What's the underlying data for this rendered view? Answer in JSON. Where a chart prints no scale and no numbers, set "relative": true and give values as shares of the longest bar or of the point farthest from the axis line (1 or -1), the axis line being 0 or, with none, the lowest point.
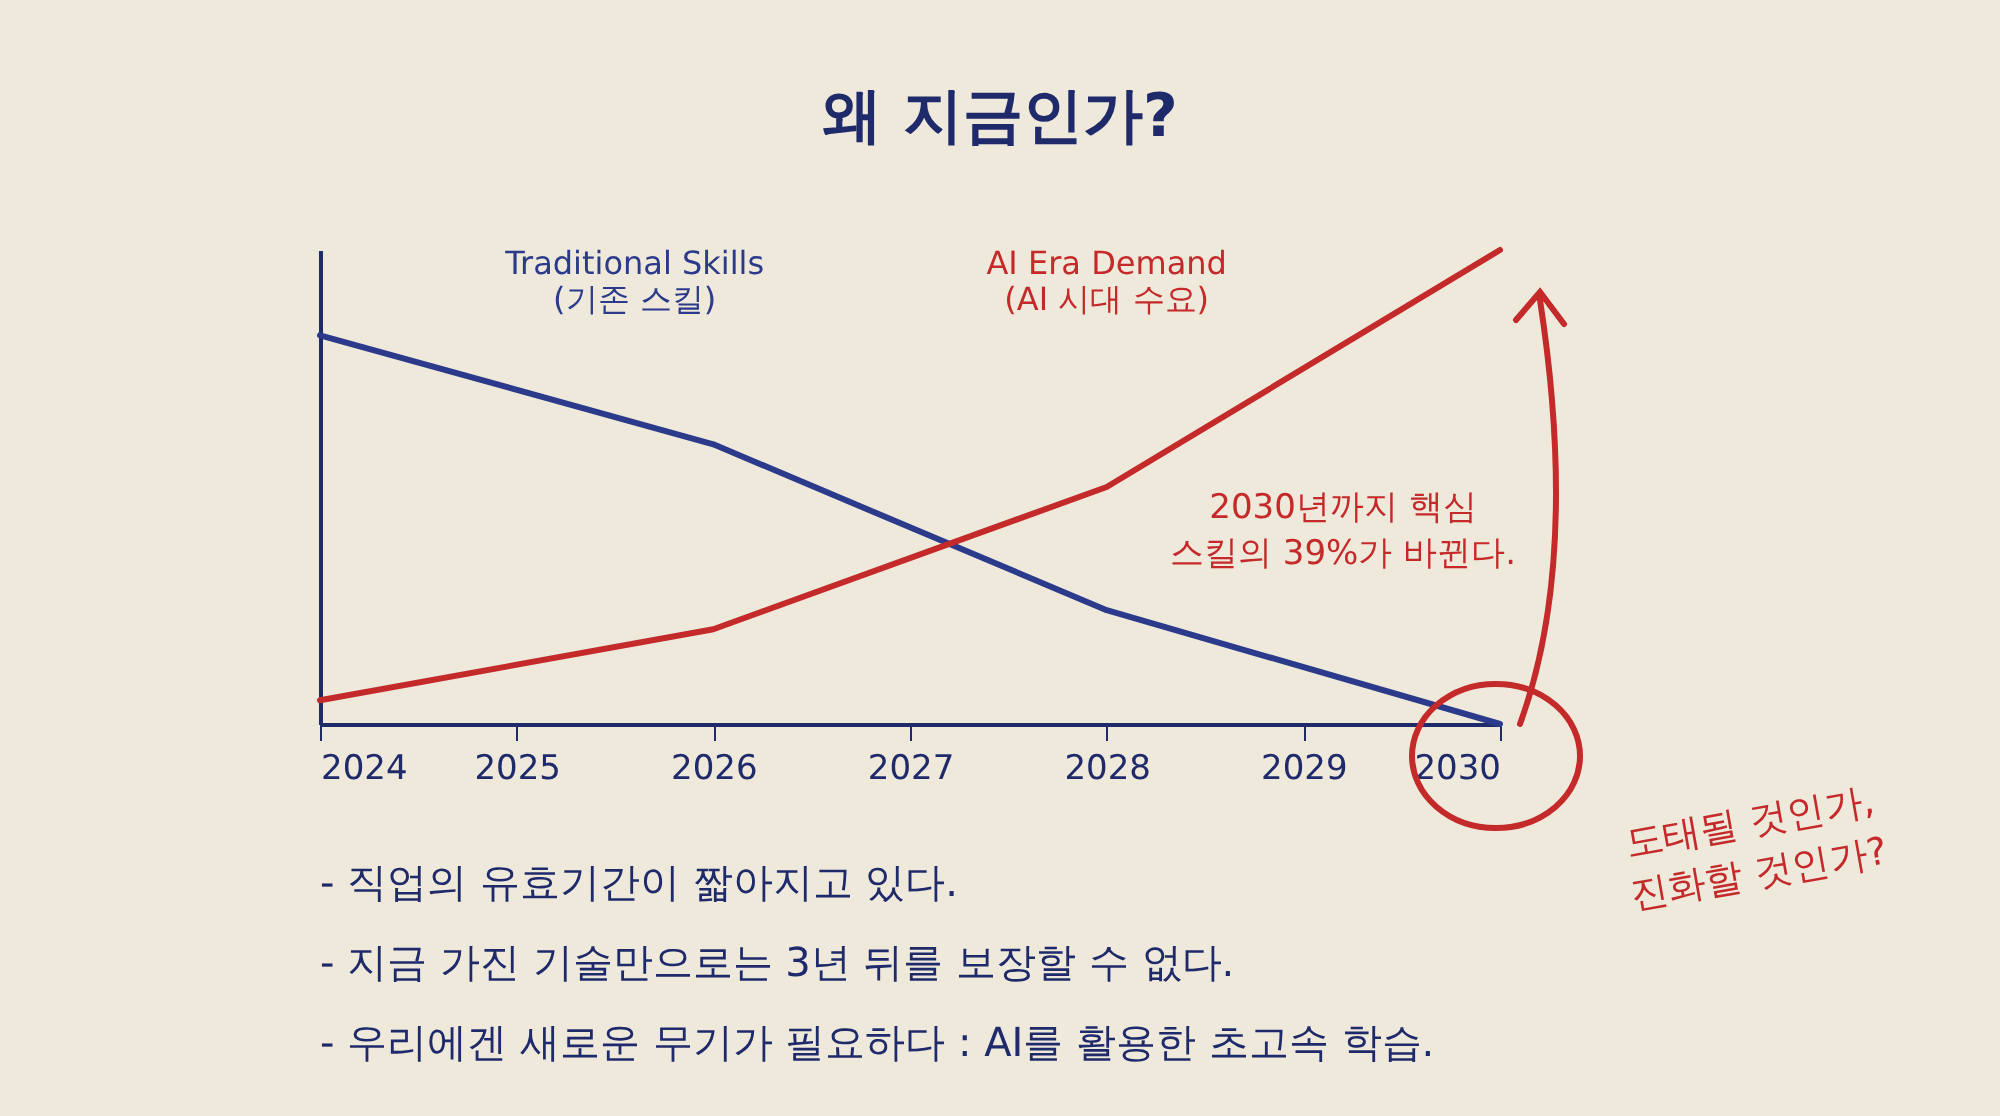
{
  "chart_data": {
    "type": "line",
    "title": "왜 지금인가?",
    "relative": true,
    "x": [
      2024,
      2026,
      2028,
      2030
    ],
    "xlim": [
      2024,
      2030
    ],
    "xticks": [
      2024,
      2025,
      2026,
      2027,
      2028,
      2029,
      2030
    ],
    "series": [
      {
        "name": "Traditional Skills\n(기존 스킬)",
        "color": "#2b3a8a",
        "values": [
          0.82,
          0.59,
          0.24,
          0
        ]
      },
      {
        "name": "AI Era Demand\n(AI 시대 수요)",
        "color": "#c42a2a",
        "values": [
          0.05,
          0.2,
          0.5,
          1
        ]
      }
    ],
    "annotations": [
      "2030년까지 핵심\n스킬의 39%가 바뀐다.",
      "도태될 것인가,\n진화할 것인가?",
      "- 직업의 유효기간이 짧아지고 있다.",
      "- 지금 가진 기술만으로는 3년 뒤를 보장할 수 없다.",
      "- 우리에겐 새로운 무기가 필요하다 : AI를 활용한 초고속 학습."
    ],
    "grid": false,
    "legend": false,
    "line_style": "solid"
  }
}
